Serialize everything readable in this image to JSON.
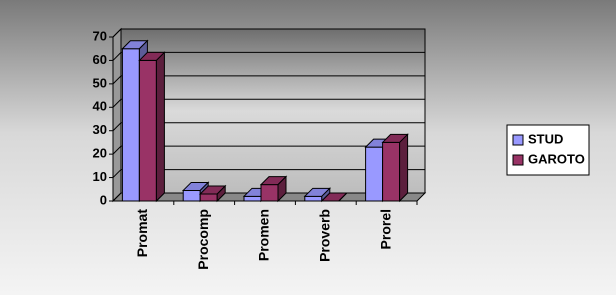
{
  "chart_data": {
    "type": "bar3d",
    "categories": [
      "Promat",
      "Procomp",
      "Promen",
      "Proverb",
      "Prorel"
    ],
    "series": [
      {
        "name": "STUD",
        "color": "#9999ff",
        "values": [
          65,
          4.5,
          2,
          2,
          23
        ]
      },
      {
        "name": "GAROTO",
        "color": "#993366",
        "values": [
          60,
          3,
          7,
          0,
          25
        ]
      }
    ],
    "ylim": [
      0,
      70
    ],
    "yticks": [
      0,
      10,
      20,
      30,
      40,
      50,
      60,
      70
    ],
    "grid": true,
    "legend": "right"
  }
}
